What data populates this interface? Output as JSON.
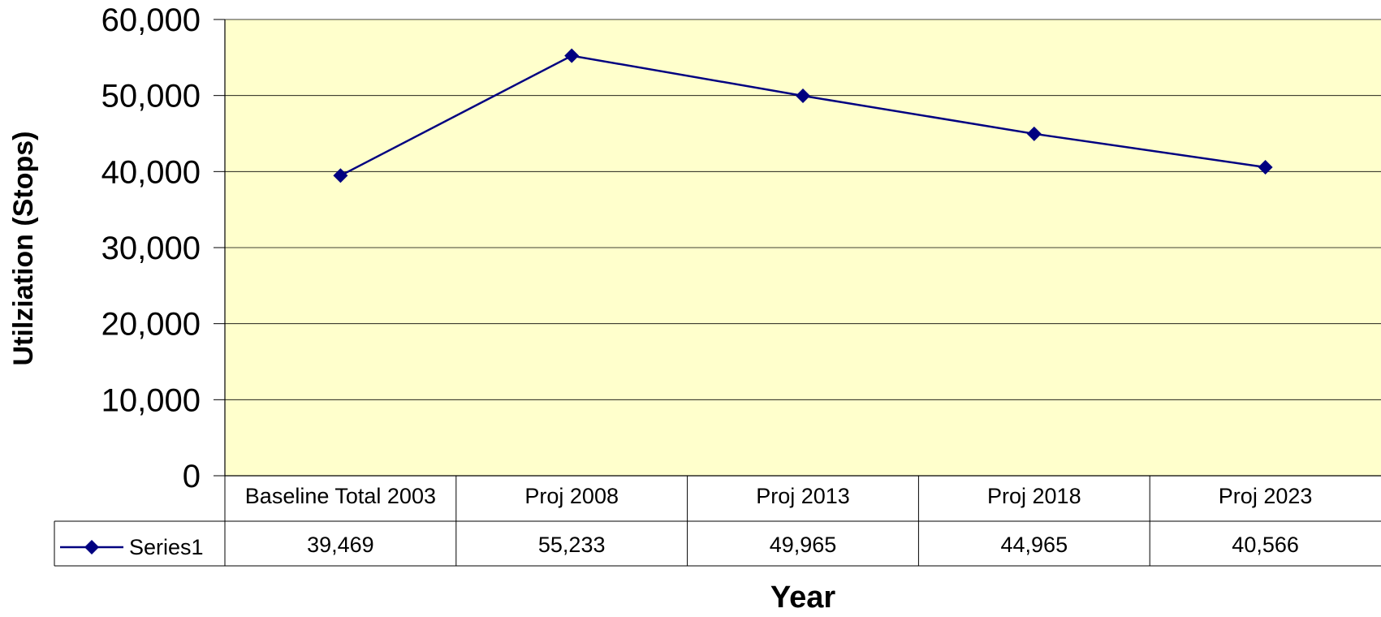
{
  "chart_data": {
    "type": "line",
    "title": "",
    "xlabel": "Year",
    "ylabel": "Utilziation (Stops)",
    "categories": [
      "Baseline Total 2003",
      "Proj 2008",
      "Proj 2013",
      "Proj 2018",
      "Proj 2023"
    ],
    "series": [
      {
        "name": "Series1",
        "values": [
          39469,
          55233,
          49965,
          44965,
          40566
        ],
        "color": "#000080"
      }
    ],
    "data_table": {
      "series_label": "Series1",
      "values": [
        "39,469",
        "55,233",
        "49,965",
        "44,965",
        "40,566"
      ]
    },
    "ylim": [
      0,
      60000
    ],
    "yticks": [
      0,
      10000,
      20000,
      30000,
      40000,
      50000,
      60000
    ],
    "ytick_labels": [
      "0",
      "10,000",
      "20,000",
      "30,000",
      "40,000",
      "50,000",
      "60,000"
    ],
    "grid": true,
    "legend": "data-table",
    "plot_background": "#FFFFCC",
    "line_color": "#000080",
    "marker": "diamond"
  }
}
